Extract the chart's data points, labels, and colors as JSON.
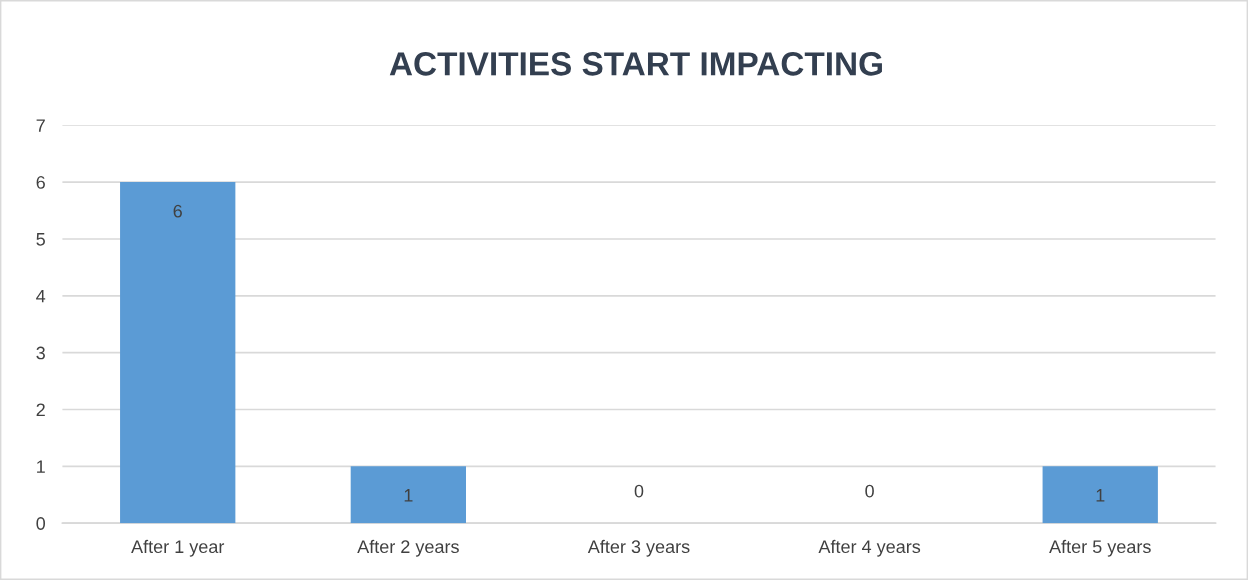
{
  "chart_data": {
    "type": "bar",
    "title": "ACTIVITIES START IMPACTING",
    "categories": [
      "After 1 year",
      "After 2 years",
      "After 3 years",
      "After 4 years",
      "After 5 years"
    ],
    "values": [
      6,
      1,
      0,
      0,
      1
    ],
    "color": "#5b9bd5",
    "ylim": [
      0,
      7
    ],
    "yticks": [
      0,
      1,
      2,
      3,
      4,
      5,
      6,
      7
    ],
    "grid": "y",
    "data_labels": true
  }
}
